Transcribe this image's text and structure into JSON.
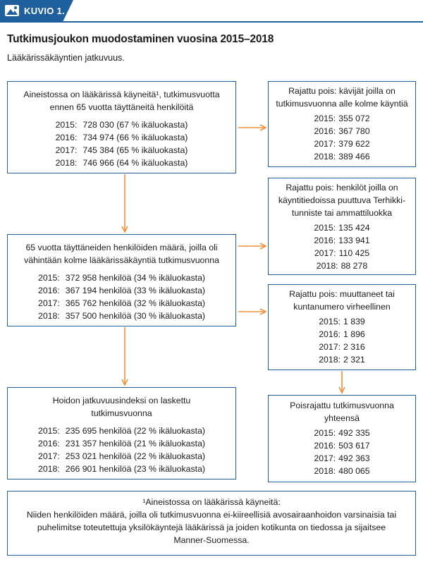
{
  "figure": {
    "tag": "KUVIO 1.",
    "title": "Tutkimusjoukon muodostaminen vuosina 2015–2018",
    "subtitle": "Lääkärissäkäyntien jatkuvuus."
  },
  "left_boxes": [
    {
      "header": "Aineistossa on lääkärissä käyneitä¹, tutkimusvuotta ennen 65 vuotta täyttäneitä henkilöitä",
      "rows": [
        {
          "year": "2015:",
          "value": "728 030  (67 % ikäluokasta)"
        },
        {
          "year": "2016:",
          "value": "734 974  (66 % ikäluokasta)"
        },
        {
          "year": "2017:",
          "value": "745 384  (65 % ikäluokasta)"
        },
        {
          "year": "2018:",
          "value": "746 966  (64 % ikäluokasta)"
        }
      ]
    },
    {
      "header": "65 vuotta täyttäneiden henkilöiden määrä, joilla oli vähintään kolme lääkärissäkäyntiä tutkimusvuonna",
      "rows": [
        {
          "year": "2015:",
          "value": "372 958 henkilöä (34 % ikäluokasta)"
        },
        {
          "year": "2016:",
          "value": "367 194 henkilöä (33 % ikäluokasta)"
        },
        {
          "year": "2017:",
          "value": "365 762 henkilöä (32 % ikäluokasta)"
        },
        {
          "year": "2018:",
          "value": "357 500 henkilöä (30 % ikäluokasta)"
        }
      ]
    },
    {
      "header": "Hoidon jatkuvuusindeksi on laskettu tutkimusvuonna",
      "rows": [
        {
          "year": "2015:",
          "value": "235 695 henkilöä (22 % ikäluokasta)"
        },
        {
          "year": "2016:",
          "value": "231 357 henkilöä (21 % ikäluokasta)"
        },
        {
          "year": "2017:",
          "value": "253 021 henkilöä (22 % ikäluokasta)"
        },
        {
          "year": "2018:",
          "value": "266 901 henkilöä (23 % ikäluokasta)"
        }
      ]
    }
  ],
  "right_boxes": [
    {
      "header": "Rajattu pois: kävijät joilla on tutkimusvuonna alle kolme käyntiä",
      "rows": [
        {
          "year": "2015:",
          "value": "355 072"
        },
        {
          "year": "2016:",
          "value": "367 780"
        },
        {
          "year": "2017:",
          "value": "379 622"
        },
        {
          "year": "2018:",
          "value": "389 466"
        }
      ]
    },
    {
      "header": "Rajattu pois: henkilöt joilla on käyntitiedoissa puuttuva Terhikki-tunniste tai ammattiluokka",
      "rows": [
        {
          "year": "2015:",
          "value": "135 424"
        },
        {
          "year": "2016:",
          "value": "133 941"
        },
        {
          "year": "2017:",
          "value": "110 425"
        },
        {
          "year": "2018:",
          "value": "88 278"
        }
      ]
    },
    {
      "header": "Rajattu pois: muuttaneet tai kuntanumero virheellinen",
      "rows": [
        {
          "year": "2015:",
          "value": "1 839"
        },
        {
          "year": "2016:",
          "value": "1 896"
        },
        {
          "year": "2017:",
          "value": "2 316"
        },
        {
          "year": "2018:",
          "value": "2 321"
        }
      ]
    },
    {
      "header": "Poisrajattu tutkimusvuonna yhteensä",
      "rows": [
        {
          "year": "2015:",
          "value": "492 335"
        },
        {
          "year": "2016:",
          "value": "503 617"
        },
        {
          "year": "2017:",
          "value": "492 363"
        },
        {
          "year": "2018:",
          "value": "480 065"
        }
      ]
    }
  ],
  "footnote": {
    "title": "¹Aineistossa on lääkärissä käyneitä:",
    "text": "Niiden henkilöiden määrä, joilla oli tutkimusvuonna ei-kiireellisiä avosairaanhoidon varsinaisia tai puhelimitse toteutettuja yksilökäyntejä lääkärissä ja joiden kotikunta on tiedossa ja sijaitsee Manner-Suomessa."
  },
  "colors": {
    "accent": "#1f5f9e",
    "arrow": "#f0903a"
  }
}
